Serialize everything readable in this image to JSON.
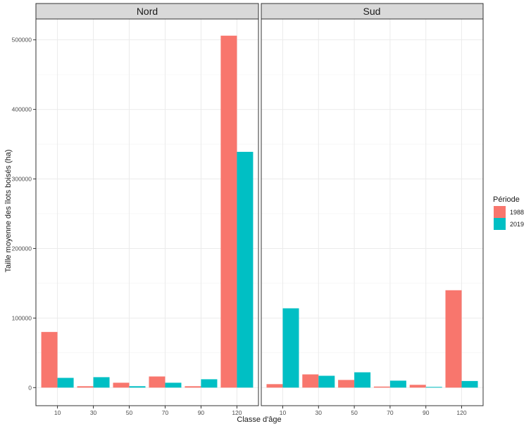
{
  "chart_data": {
    "type": "bar",
    "xlabel": "Classe d'âge",
    "ylabel": "Taille moyenne des îlots boisés (ha)",
    "categories": [
      "10",
      "30",
      "50",
      "70",
      "90",
      "120"
    ],
    "yticks": [
      0,
      100000,
      200000,
      300000,
      400000,
      500000
    ],
    "ytick_labels": [
      "0",
      "100000",
      "200000",
      "300000",
      "400000",
      "500000"
    ],
    "ylim": [
      -26000,
      530000
    ],
    "grid": true,
    "legend": {
      "title": "Période",
      "placement": "right"
    },
    "series": [
      {
        "name": "1988",
        "color": "#F8766D"
      },
      {
        "name": "2019",
        "color": "#00BFC4"
      }
    ],
    "facets": [
      {
        "label": "Nord",
        "values": {
          "1988": [
            80000,
            2000,
            7000,
            16000,
            2000,
            506000
          ],
          "2019": [
            14000,
            15000,
            2000,
            7000,
            12000,
            339000
          ]
        }
      },
      {
        "label": "Sud",
        "values": {
          "1988": [
            5000,
            19000,
            11000,
            1500,
            4000,
            140000
          ],
          "2019": [
            114000,
            17000,
            22000,
            10000,
            1000,
            9500
          ]
        }
      }
    ]
  }
}
